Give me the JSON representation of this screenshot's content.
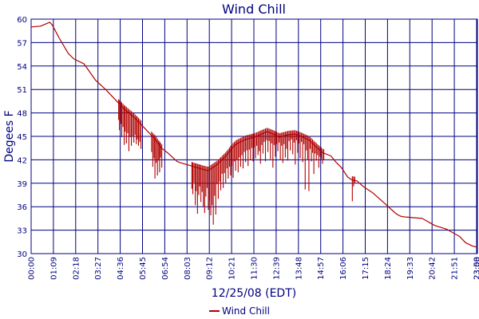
{
  "chart_data": {
    "type": "line",
    "title": "Wind Chill",
    "xlabel": "12/25/08 (EDT)",
    "ylabel": "Degees F",
    "ylim": [
      30,
      60
    ],
    "yticks": [
      30,
      33,
      36,
      39,
      42,
      45,
      48,
      51,
      54,
      57,
      60
    ],
    "xticks": [
      "00:00",
      "01:09",
      "02:18",
      "03:27",
      "04:36",
      "05:45",
      "06:54",
      "08:03",
      "09:12",
      "10:21",
      "11:30",
      "12:39",
      "13:48",
      "14:57",
      "16:06",
      "17:15",
      "18:24",
      "19:33",
      "20:42",
      "21:51",
      "23:00"
    ],
    "x_end_label": "23:58",
    "grid": true,
    "legend_position": "bottom",
    "colors": {
      "series": "#b00000",
      "axis": "#000080",
      "grid": "#000080"
    },
    "series": [
      {
        "name": "Wind Chill",
        "x_minutes": [
          0,
          30,
          60,
          69,
          90,
          120,
          138,
          170,
          207,
          240,
          276,
          300,
          330,
          360,
          400,
          420,
          440,
          470,
          483,
          510,
          552,
          570,
          600,
          630,
          645,
          660,
          690,
          720,
          760,
          780,
          800,
          828,
          850,
          870,
          897,
          920,
          940,
          966,
          980,
          1000,
          1020,
          1035,
          1050,
          1070,
          1100,
          1140,
          1173,
          1180,
          1190,
          1200,
          1230,
          1260,
          1300,
          1340,
          1380,
          1400,
          1420,
          1438
        ],
        "values": [
          59,
          59.1,
          59.6,
          59.2,
          57.6,
          55.6,
          54.9,
          54.3,
          52.2,
          51,
          49.5,
          48.5,
          47.5,
          46.3,
          44.6,
          43.5,
          42.9,
          41.8,
          41.6,
          41.3,
          40.8,
          40.6,
          41.4,
          42.6,
          43.4,
          44,
          44.6,
          44.9,
          45.6,
          45.3,
          44.9,
          45.2,
          45.3,
          45,
          44.5,
          43.6,
          42.9,
          42.5,
          41.8,
          41,
          39.8,
          39.4,
          39.3,
          38.6,
          37.8,
          36.4,
          35.2,
          35,
          34.8,
          34.7,
          34.6,
          34.5,
          33.6,
          33.1,
          32.2,
          31.4,
          31,
          30.8
        ]
      }
    ],
    "dips": [
      {
        "x": 282,
        "v": 47.1
      },
      {
        "x": 285,
        "v": 45.8
      },
      {
        "x": 289,
        "v": 46.6
      },
      {
        "x": 292,
        "v": 44.9
      },
      {
        "x": 296,
        "v": 46.2
      },
      {
        "x": 300,
        "v": 43.9
      },
      {
        "x": 303,
        "v": 45.6
      },
      {
        "x": 307,
        "v": 44.1
      },
      {
        "x": 311,
        "v": 45.4
      },
      {
        "x": 315,
        "v": 43.1
      },
      {
        "x": 319,
        "v": 44.9
      },
      {
        "x": 323,
        "v": 43.8
      },
      {
        "x": 327,
        "v": 45.0
      },
      {
        "x": 331,
        "v": 44.2
      },
      {
        "x": 335,
        "v": 45.2
      },
      {
        "x": 339,
        "v": 44.0
      },
      {
        "x": 342,
        "v": 44.6
      },
      {
        "x": 346,
        "v": 43.8
      },
      {
        "x": 350,
        "v": 44.3
      },
      {
        "x": 354,
        "v": 43.4
      },
      {
        "x": 388,
        "v": 43.0
      },
      {
        "x": 392,
        "v": 41.1
      },
      {
        "x": 396,
        "v": 42.2
      },
      {
        "x": 399,
        "v": 39.6
      },
      {
        "x": 403,
        "v": 41.6
      },
      {
        "x": 407,
        "v": 40.0
      },
      {
        "x": 411,
        "v": 41.9
      },
      {
        "x": 414,
        "v": 40.4
      },
      {
        "x": 417,
        "v": 42.3
      },
      {
        "x": 421,
        "v": 41.0
      },
      {
        "x": 518,
        "v": 38.3
      },
      {
        "x": 521,
        "v": 37.6
      },
      {
        "x": 525,
        "v": 39.1
      },
      {
        "x": 529,
        "v": 36.2
      },
      {
        "x": 532,
        "v": 38.0
      },
      {
        "x": 536,
        "v": 35.1
      },
      {
        "x": 540,
        "v": 37.5
      },
      {
        "x": 543,
        "v": 38.6
      },
      {
        "x": 547,
        "v": 36.6
      },
      {
        "x": 551,
        "v": 37.9
      },
      {
        "x": 555,
        "v": 36.0
      },
      {
        "x": 559,
        "v": 35.2
      },
      {
        "x": 563,
        "v": 37.3
      },
      {
        "x": 567,
        "v": 38.4
      },
      {
        "x": 571,
        "v": 35.6
      },
      {
        "x": 575,
        "v": 36.8
      },
      {
        "x": 579,
        "v": 34.9
      },
      {
        "x": 583,
        "v": 36.2
      },
      {
        "x": 587,
        "v": 33.7
      },
      {
        "x": 591,
        "v": 37.4
      },
      {
        "x": 595,
        "v": 35.0
      },
      {
        "x": 599,
        "v": 38.9
      },
      {
        "x": 603,
        "v": 37.0
      },
      {
        "x": 607,
        "v": 39.2
      },
      {
        "x": 611,
        "v": 38.1
      },
      {
        "x": 615,
        "v": 40.2
      },
      {
        "x": 619,
        "v": 38.4
      },
      {
        "x": 623,
        "v": 40.3
      },
      {
        "x": 627,
        "v": 39.0
      },
      {
        "x": 631,
        "v": 40.9
      },
      {
        "x": 635,
        "v": 39.6
      },
      {
        "x": 639,
        "v": 41.1
      },
      {
        "x": 643,
        "v": 40.0
      },
      {
        "x": 647,
        "v": 41.2
      },
      {
        "x": 651,
        "v": 39.7
      },
      {
        "x": 655,
        "v": 41.8
      },
      {
        "x": 659,
        "v": 40.6
      },
      {
        "x": 663,
        "v": 42.0
      },
      {
        "x": 667,
        "v": 40.4
      },
      {
        "x": 671,
        "v": 42.3
      },
      {
        "x": 675,
        "v": 41.1
      },
      {
        "x": 679,
        "v": 42.6
      },
      {
        "x": 683,
        "v": 40.9
      },
      {
        "x": 687,
        "v": 43.0
      },
      {
        "x": 691,
        "v": 41.7
      },
      {
        "x": 695,
        "v": 43.2
      },
      {
        "x": 699,
        "v": 41.2
      },
      {
        "x": 703,
        "v": 43.3
      },
      {
        "x": 707,
        "v": 42.0
      },
      {
        "x": 711,
        "v": 43.5
      },
      {
        "x": 715,
        "v": 41.8
      },
      {
        "x": 719,
        "v": 43.6
      },
      {
        "x": 723,
        "v": 42.2
      },
      {
        "x": 727,
        "v": 43.8
      },
      {
        "x": 731,
        "v": 42.6
      },
      {
        "x": 735,
        "v": 43.1
      },
      {
        "x": 739,
        "v": 41.5
      },
      {
        "x": 743,
        "v": 43.9
      },
      {
        "x": 747,
        "v": 42.8
      },
      {
        "x": 751,
        "v": 44.3
      },
      {
        "x": 755,
        "v": 41.8
      },
      {
        "x": 759,
        "v": 44.5
      },
      {
        "x": 763,
        "v": 43.0
      },
      {
        "x": 767,
        "v": 44.4
      },
      {
        "x": 771,
        "v": 42.1
      },
      {
        "x": 775,
        "v": 44.1
      },
      {
        "x": 779,
        "v": 41.0
      },
      {
        "x": 783,
        "v": 43.9
      },
      {
        "x": 787,
        "v": 42.4
      },
      {
        "x": 791,
        "v": 44.0
      },
      {
        "x": 795,
        "v": 43.1
      },
      {
        "x": 799,
        "v": 44.2
      },
      {
        "x": 803,
        "v": 42.0
      },
      {
        "x": 807,
        "v": 43.8
      },
      {
        "x": 811,
        "v": 41.6
      },
      {
        "x": 815,
        "v": 44.0
      },
      {
        "x": 819,
        "v": 42.3
      },
      {
        "x": 823,
        "v": 43.4
      },
      {
        "x": 827,
        "v": 41.9
      },
      {
        "x": 831,
        "v": 44.4
      },
      {
        "x": 835,
        "v": 43.2
      },
      {
        "x": 839,
        "v": 44.6
      },
      {
        "x": 843,
        "v": 42.7
      },
      {
        "x": 847,
        "v": 44.2
      },
      {
        "x": 851,
        "v": 41.4
      },
      {
        "x": 855,
        "v": 44.5
      },
      {
        "x": 859,
        "v": 42.9
      },
      {
        "x": 863,
        "v": 44.1
      },
      {
        "x": 867,
        "v": 42.2
      },
      {
        "x": 871,
        "v": 44.3
      },
      {
        "x": 875,
        "v": 41.7
      },
      {
        "x": 879,
        "v": 44.0
      },
      {
        "x": 883,
        "v": 38.2
      },
      {
        "x": 887,
        "v": 43.2
      },
      {
        "x": 891,
        "v": 42.0
      },
      {
        "x": 895,
        "v": 38.0
      },
      {
        "x": 899,
        "v": 43.4
      },
      {
        "x": 903,
        "v": 41.8
      },
      {
        "x": 907,
        "v": 42.9
      },
      {
        "x": 911,
        "v": 40.2
      },
      {
        "x": 915,
        "v": 42.8
      },
      {
        "x": 919,
        "v": 41.9
      },
      {
        "x": 923,
        "v": 42.6
      },
      {
        "x": 927,
        "v": 41.0
      },
      {
        "x": 931,
        "v": 42.4
      },
      {
        "x": 935,
        "v": 42.1
      },
      {
        "x": 939,
        "v": 41.5
      },
      {
        "x": 943,
        "v": 42.0
      },
      {
        "x": 1035,
        "v": 36.7
      },
      {
        "x": 1039,
        "v": 38.6
      },
      {
        "x": 1043,
        "v": 39.0
      }
    ]
  }
}
